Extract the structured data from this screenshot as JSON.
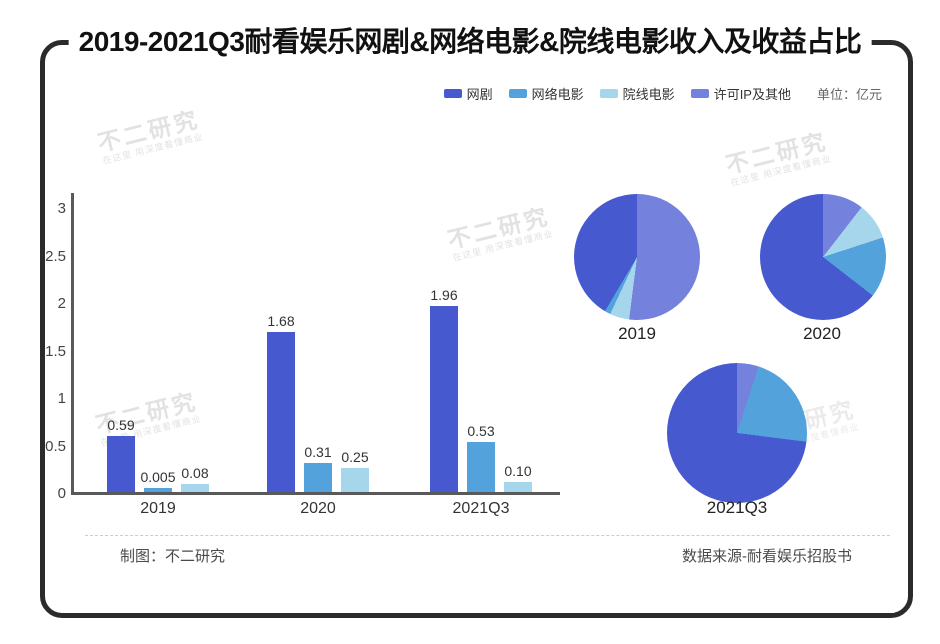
{
  "title": "2019-2021Q3耐看娱乐网剧&网络电影&院线电影收入及收益占比",
  "unit_label": "单位：亿元",
  "colors": {
    "网剧": "#4759ce",
    "网络电影": "#54a2dc",
    "院线电影": "#a6d6ec",
    "许可IP及其他": "#7481dd",
    "axis": "#595959",
    "frame_border": "#2b2b2b"
  },
  "legend": [
    {
      "name": "网剧",
      "color": "#4759ce"
    },
    {
      "name": "网络电影",
      "color": "#54a2dc"
    },
    {
      "name": "院线电影",
      "color": "#a6d6ec"
    },
    {
      "name": "许可IP及其他",
      "color": "#7481dd"
    }
  ],
  "chart_data": [
    {
      "type": "bar",
      "categories": [
        "2019",
        "2020",
        "2021Q3"
      ],
      "series": [
        {
          "name": "网剧",
          "values": [
            0.59,
            1.68,
            1.96
          ],
          "labels": [
            "0.59",
            "1.68",
            "1.96"
          ]
        },
        {
          "name": "网络电影",
          "values": [
            0.005,
            0.31,
            0.53
          ],
          "labels": [
            "0.005",
            "0.31",
            "0.53"
          ]
        },
        {
          "name": "院线电影",
          "values": [
            0.08,
            0.25,
            0.1
          ],
          "labels": [
            "0.08",
            "0.25",
            "0.10"
          ]
        }
      ],
      "ylim": [
        0,
        3
      ],
      "yticks": [
        "0",
        "0.5",
        "1",
        "1.5",
        "2",
        "2.5",
        "3"
      ],
      "grid": false,
      "legend_position": "top-right"
    },
    {
      "type": "pie",
      "label": "2019",
      "slices": [
        {
          "name": "网剧",
          "pct": 41.5
        },
        {
          "name": "网络电影",
          "pct": 1.5
        },
        {
          "name": "院线电影",
          "pct": 5
        },
        {
          "name": "许可IP及其他",
          "pct": 52
        }
      ]
    },
    {
      "type": "pie",
      "label": "2020",
      "slices": [
        {
          "name": "网剧",
          "pct": 64.5
        },
        {
          "name": "网络电影",
          "pct": 15.5
        },
        {
          "name": "院线电影",
          "pct": 9.5
        },
        {
          "name": "许可IP及其他",
          "pct": 10.5
        }
      ]
    },
    {
      "type": "pie",
      "label": "2021Q3",
      "slices": [
        {
          "name": "网剧",
          "pct": 73
        },
        {
          "name": "网络电影",
          "pct": 22
        },
        {
          "name": "院线电影",
          "pct": 0
        },
        {
          "name": "许可IP及其他",
          "pct": 5
        }
      ]
    }
  ],
  "watermark": {
    "text": "不二研究",
    "subtext": "在这里 用深度看懂商业"
  },
  "footer": {
    "left": "制图：不二研究",
    "right": "数据来源-耐看娱乐招股书"
  }
}
